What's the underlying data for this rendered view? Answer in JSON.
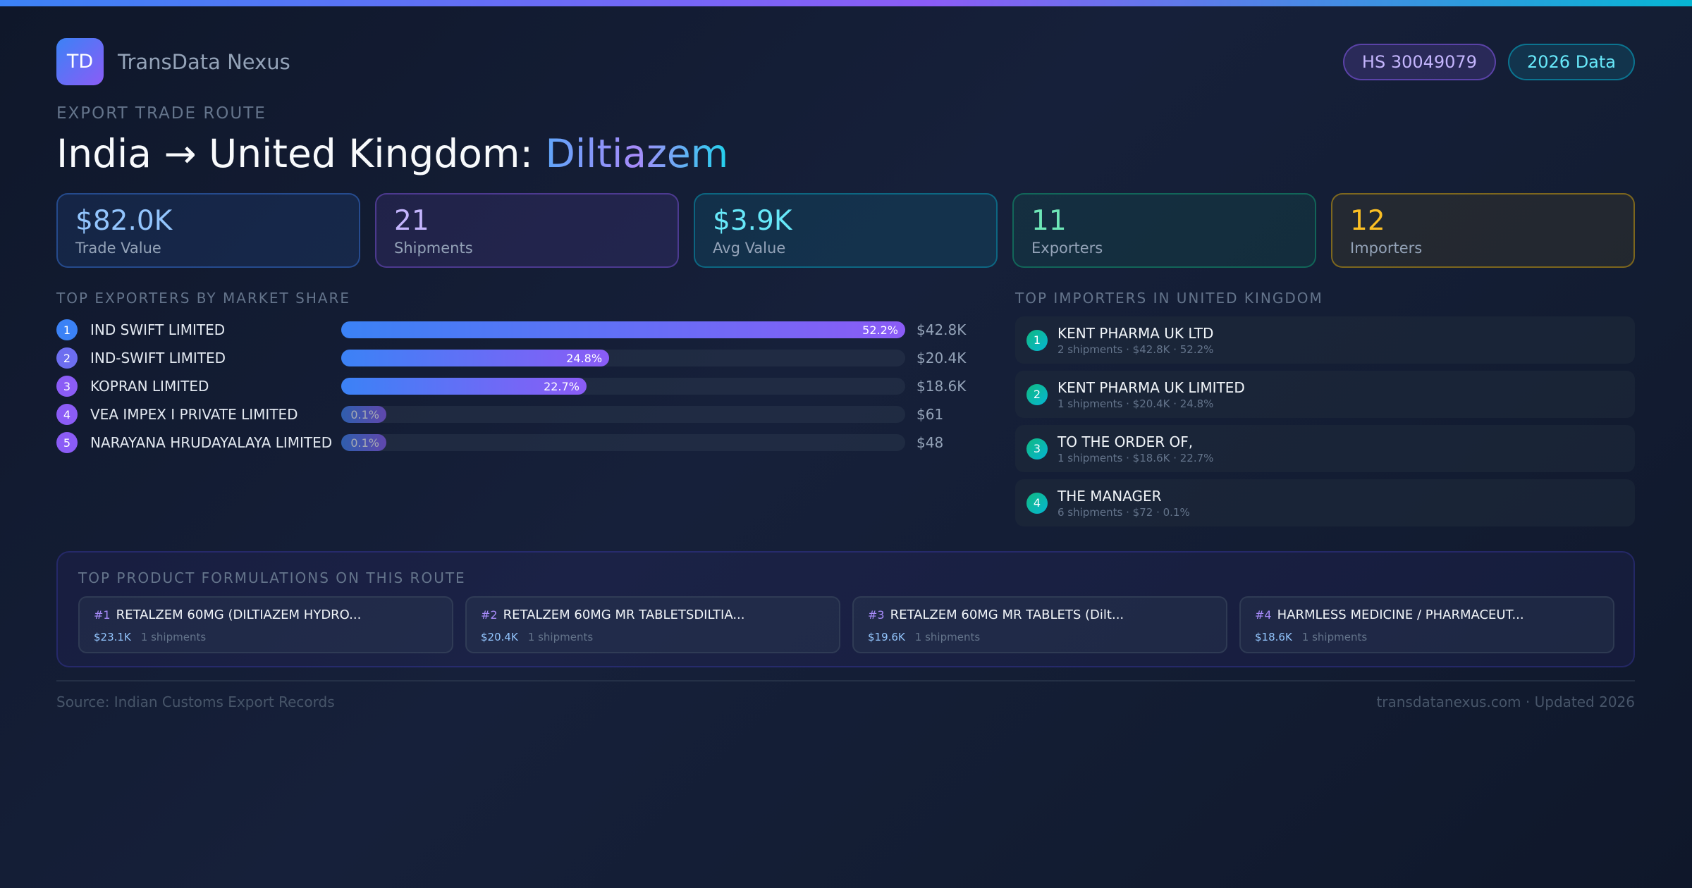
{
  "brand": {
    "logo": "TD",
    "name": "TransData Nexus"
  },
  "badges": {
    "hs": "HS 30049079",
    "year": "2026 Data"
  },
  "eyebrow": "EXPORT TRADE ROUTE",
  "title": {
    "route": "India → United Kingdom: ",
    "drug": "Diltiazem"
  },
  "stats": [
    {
      "value": "$82.0K",
      "label": "Trade Value"
    },
    {
      "value": "21",
      "label": "Shipments"
    },
    {
      "value": "$3.9K",
      "label": "Avg Value"
    },
    {
      "value": "11",
      "label": "Exporters"
    },
    {
      "value": "12",
      "label": "Importers"
    }
  ],
  "exporters": {
    "heading": "TOP EXPORTERS BY MARKET SHARE",
    "items": [
      {
        "rank": "1",
        "name": "IND SWIFT LIMITED",
        "share": 52.2,
        "share_label": "52.2%",
        "value": "$42.8K"
      },
      {
        "rank": "2",
        "name": "IND-SWIFT LIMITED",
        "share": 24.8,
        "share_label": "24.8%",
        "value": "$20.4K"
      },
      {
        "rank": "3",
        "name": "KOPRAN LIMITED",
        "share": 22.7,
        "share_label": "22.7%",
        "value": "$18.6K"
      },
      {
        "rank": "4",
        "name": "VEA IMPEX I PRIVATE LIMITED",
        "share": 0.1,
        "share_label": "0.1%",
        "value": "$61"
      },
      {
        "rank": "5",
        "name": "NARAYANA  HRUDAYALAYA  LIMITED",
        "share": 0.1,
        "share_label": "0.1%",
        "value": "$48"
      }
    ]
  },
  "importers": {
    "heading": "TOP IMPORTERS IN UNITED KINGDOM",
    "items": [
      {
        "rank": "1",
        "name": "KENT PHARMA UK LTD",
        "meta": "2 shipments · $42.8K · 52.2%"
      },
      {
        "rank": "2",
        "name": "KENT PHARMA UK LIMITED",
        "meta": "1 shipments · $20.4K · 24.8%"
      },
      {
        "rank": "3",
        "name": "TO THE ORDER OF,",
        "meta": "1 shipments · $18.6K · 22.7%"
      },
      {
        "rank": "4",
        "name": "THE MANAGER",
        "meta": "6 shipments · $72 · 0.1%"
      }
    ]
  },
  "products": {
    "heading": "TOP PRODUCT FORMULATIONS ON THIS ROUTE",
    "items": [
      {
        "num": "#1",
        "name": "RETALZEM 60MG (DILTIAZEM HYDRO...",
        "value": "$23.1K",
        "shipments": "1 shipments"
      },
      {
        "num": "#2",
        "name": "RETALZEM 60MG MR TABLETSDILTIA...",
        "value": "$20.4K",
        "shipments": "1 shipments"
      },
      {
        "num": "#3",
        "name": "RETALZEM 60MG MR TABLETS (Dilt...",
        "value": "$19.6K",
        "shipments": "1 shipments"
      },
      {
        "num": "#4",
        "name": "HARMLESS MEDICINE / PHARMACEUT...",
        "value": "$18.6K",
        "shipments": "1 shipments"
      }
    ]
  },
  "footer": {
    "source": "Source: Indian Customs Export Records",
    "site": "transdatanexus.com · Updated 2026"
  }
}
